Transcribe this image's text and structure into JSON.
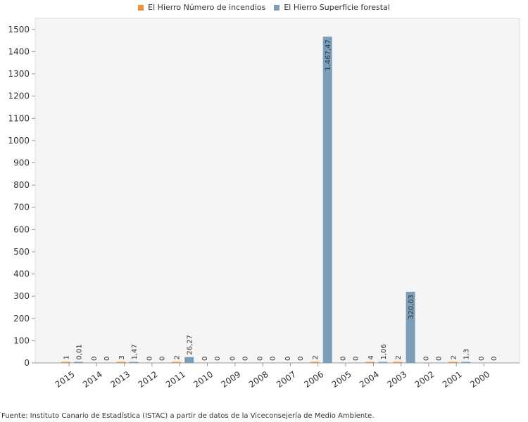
{
  "source": "Fuente: Instituto Canario de Estadística (ISTAC) a partir de datos de la Viceconsejería de Medio Ambiente.",
  "chart_data": {
    "type": "bar",
    "categories": [
      "2015",
      "2014",
      "2013",
      "2012",
      "2011",
      "2010",
      "2009",
      "2008",
      "2007",
      "2006",
      "2005",
      "2004",
      "2003",
      "2002",
      "2001",
      "2000"
    ],
    "series": [
      {
        "name": "El Hierro Número de incendios",
        "color": "#f0923c",
        "values": [
          1,
          0,
          3,
          0,
          2,
          0,
          0,
          0,
          0,
          2,
          0,
          4,
          2,
          0,
          2,
          0
        ],
        "labels": [
          "1",
          "0",
          "3",
          "0",
          "2",
          "0",
          "0",
          "0",
          "0",
          "2",
          "0",
          "4",
          "2",
          "0",
          "2",
          "0"
        ]
      },
      {
        "name": "El Hierro Superficie forestal",
        "color": "#7b9fba",
        "values": [
          0.01,
          0,
          1.47,
          0,
          26.27,
          0,
          0,
          0,
          0,
          1467.47,
          0,
          1.06,
          320.03,
          0,
          1.3,
          0
        ],
        "labels": [
          "0,01",
          "0",
          "1,47",
          "0",
          "26,27",
          "0",
          "0",
          "0",
          "0",
          "1.467,47",
          "0",
          "1,06",
          "320,03",
          "0",
          "1,3",
          "0"
        ]
      }
    ],
    "ylim": [
      0,
      1550
    ],
    "yticks": [
      "0",
      "100",
      "200",
      "300",
      "400",
      "500",
      "600",
      "700",
      "800",
      "900",
      "1000",
      "1100",
      "1200",
      "1300",
      "1400",
      "1500"
    ],
    "grid": false,
    "legend_position": "top"
  }
}
